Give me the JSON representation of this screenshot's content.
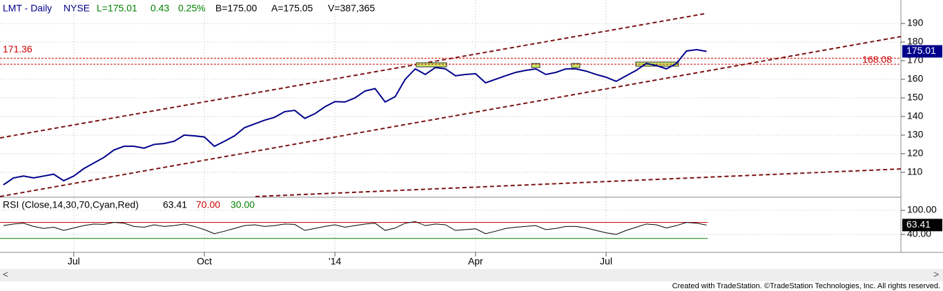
{
  "header": {
    "symbol": "LMT - Daily",
    "exchange": "NYSE",
    "last": "L=175.01",
    "change": "0.43",
    "change_pct": "0.25%",
    "bid": "B=175.00",
    "ask": "A=175.05",
    "volume": "V=387,365"
  },
  "footer": "Created with TradeStation. ©TradeStation Technologies, Inc. All rights reserved.",
  "chart_data": [
    {
      "type": "line",
      "categories": [
        null,
        null,
        null,
        null,
        null,
        null,
        null,
        "Jul",
        null,
        null,
        null,
        null,
        null,
        null,
        null,
        null,
        null,
        null,
        null,
        null,
        "Oct",
        null,
        null,
        null,
        null,
        null,
        null,
        null,
        null,
        null,
        null,
        null,
        null,
        "'14",
        null,
        null,
        null,
        null,
        null,
        null,
        null,
        null,
        null,
        null,
        null,
        null,
        null,
        "Apr",
        null,
        null,
        null,
        null,
        null,
        null,
        null,
        null,
        null,
        null,
        null,
        null,
        "Jul",
        null,
        null,
        null,
        null,
        null,
        null,
        null,
        null,
        null,
        null
      ],
      "series": [
        {
          "name": "LMT",
          "color": "#00008b",
          "values": [
            103.3,
            107,
            108,
            107,
            108,
            109,
            105.5,
            108,
            112,
            115,
            118,
            122,
            124,
            124,
            123,
            125,
            125.5,
            126.7,
            130,
            129.6,
            129,
            124,
            126.7,
            129.6,
            134,
            136,
            138,
            139.6,
            142.6,
            143.3,
            139,
            141.5,
            145.2,
            148,
            147.8,
            150,
            153.7,
            155,
            147.8,
            150.7,
            160,
            165.6,
            162.6,
            166.3,
            165.6,
            161.9,
            162.6,
            163,
            158.1,
            160,
            161.9,
            163.7,
            164.8,
            165.6,
            162.6,
            163.7,
            165.6,
            165.6,
            164.4,
            162.6,
            161.1,
            158.9,
            161.9,
            164.8,
            168.5,
            167.4,
            165.6,
            168.5,
            175.2,
            175.9,
            175.01
          ]
        }
      ],
      "reference_lines": [
        {
          "value": 171.36,
          "color": "#cc0000"
        },
        {
          "value": 168.08,
          "color": "#cc0000"
        }
      ],
      "ylim": [
        97,
        202.6
      ],
      "yticks": [
        110,
        120,
        130,
        140,
        150,
        160,
        170,
        180,
        190
      ],
      "grid": true
    },
    {
      "type": "line",
      "title": "RSI (Close,14,30,70,Cyan,Red)",
      "series": [
        {
          "name": "RSI",
          "color": "#000000",
          "values": [
            62,
            66,
            68,
            60,
            55,
            58,
            50,
            56,
            62,
            66,
            65,
            70,
            68,
            60,
            58,
            64,
            60,
            62,
            66,
            60,
            52,
            42,
            48,
            55,
            62,
            64,
            60,
            62,
            66,
            65,
            50,
            55,
            60,
            64,
            58,
            62,
            66,
            68,
            50,
            56,
            68,
            72,
            62,
            66,
            64,
            50,
            52,
            54,
            42,
            48,
            55,
            58,
            60,
            62,
            52,
            55,
            60,
            60,
            56,
            50,
            44,
            40,
            50,
            58,
            66,
            64,
            56,
            62,
            70,
            68,
            63.41
          ]
        }
      ],
      "levels": [
        {
          "value": 70,
          "label": "70.00",
          "color": "#cc0000"
        },
        {
          "value": 30,
          "label": "30.00",
          "color": "#008000"
        }
      ],
      "ylim": [
        -3,
        131
      ],
      "yticks": [
        {
          "value": 40,
          "label": "40.00"
        },
        {
          "value": 100,
          "label": "100.00"
        }
      ]
    }
  ]
}
